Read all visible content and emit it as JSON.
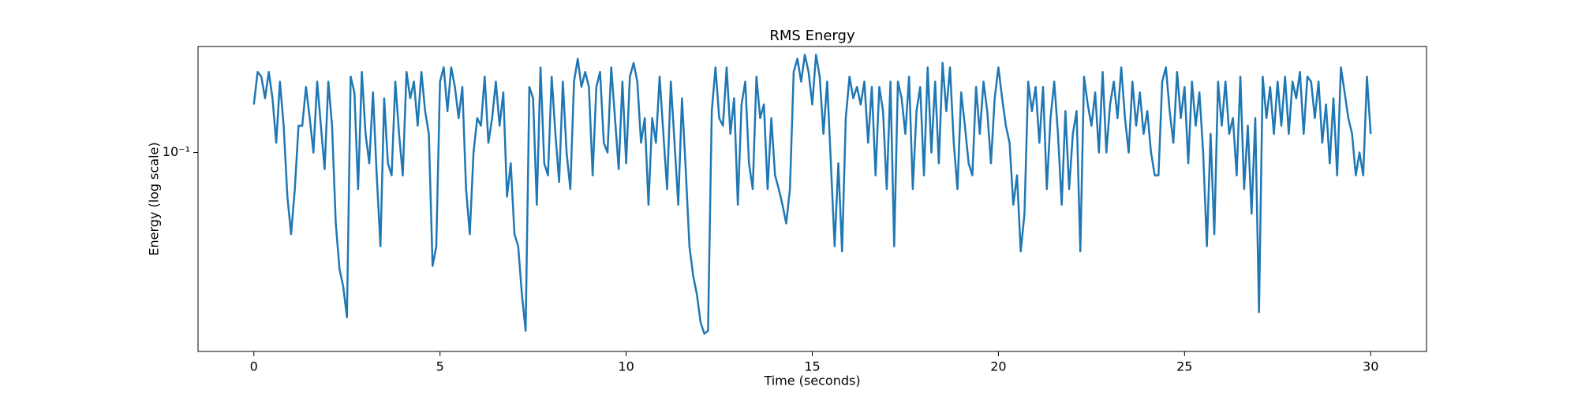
{
  "chart_data": {
    "type": "line",
    "title": "RMS Energy",
    "x_label": "Time (seconds)",
    "y_label": "Energy (log scale)",
    "log_y": true,
    "grid": false,
    "xlim": [
      -1.5,
      31.5
    ],
    "xticks": [
      0,
      5,
      10,
      15,
      20,
      25,
      30
    ],
    "ylim": [
      0.0143,
      0.282
    ],
    "yticks": [
      {
        "value": 0.1,
        "label": "10⁻¹"
      }
    ],
    "x": [
      0,
      0.1,
      0.2,
      0.3,
      0.4,
      0.5,
      0.6,
      0.7,
      0.8,
      0.9,
      1,
      1.1,
      1.2,
      1.3,
      1.4,
      1.5,
      1.6,
      1.7,
      1.8,
      1.9,
      2,
      2.1,
      2.2,
      2.3,
      2.4,
      2.5,
      2.6,
      2.7,
      2.8,
      2.9,
      3,
      3.1,
      3.2,
      3.3,
      3.4,
      3.5,
      3.6,
      3.7,
      3.8,
      3.9,
      4,
      4.1,
      4.2,
      4.3,
      4.4,
      4.5,
      4.6,
      4.7,
      4.8,
      4.9,
      5,
      5.1,
      5.2,
      5.3,
      5.4,
      5.5,
      5.6,
      5.7,
      5.8,
      5.9,
      6,
      6.1,
      6.2,
      6.3,
      6.4,
      6.5,
      6.6,
      6.7,
      6.8,
      6.9,
      7,
      7.1,
      7.2,
      7.3,
      7.4,
      7.5,
      7.6,
      7.7,
      7.8,
      7.9,
      8,
      8.1,
      8.2,
      8.3,
      8.4,
      8.5,
      8.6,
      8.7,
      8.8,
      8.9,
      9,
      9.1,
      9.2,
      9.3,
      9.4,
      9.5,
      9.6,
      9.7,
      9.8,
      9.9,
      10,
      10.1,
      10.2,
      10.3,
      10.4,
      10.5,
      10.6,
      10.7,
      10.8,
      10.9,
      11,
      11.1,
      11.2,
      11.3,
      11.4,
      11.5,
      11.6,
      11.7,
      11.8,
      11.9,
      12,
      12.1,
      12.2,
      12.3,
      12.4,
      12.5,
      12.6,
      12.7,
      12.8,
      12.9,
      13,
      13.1,
      13.2,
      13.3,
      13.4,
      13.5,
      13.6,
      13.7,
      13.8,
      13.9,
      14,
      14.1,
      14.2,
      14.3,
      14.4,
      14.5,
      14.6,
      14.7,
      14.8,
      14.9,
      15,
      15.1,
      15.2,
      15.3,
      15.4,
      15.5,
      15.6,
      15.7,
      15.8,
      15.9,
      16,
      16.1,
      16.2,
      16.3,
      16.4,
      16.5,
      16.6,
      16.7,
      16.8,
      16.9,
      17,
      17.1,
      17.2,
      17.3,
      17.4,
      17.5,
      17.6,
      17.7,
      17.8,
      17.9,
      18,
      18.1,
      18.2,
      18.3,
      18.4,
      18.5,
      18.6,
      18.7,
      18.8,
      18.9,
      19,
      19.1,
      19.2,
      19.3,
      19.4,
      19.5,
      19.6,
      19.7,
      19.8,
      19.9,
      20,
      20.1,
      20.2,
      20.3,
      20.4,
      20.5,
      20.6,
      20.7,
      20.8,
      20.9,
      21,
      21.1,
      21.2,
      21.3,
      21.4,
      21.5,
      21.6,
      21.7,
      21.8,
      21.9,
      22,
      22.1,
      22.2,
      22.3,
      22.4,
      22.5,
      22.6,
      22.7,
      22.8,
      22.9,
      23,
      23.1,
      23.2,
      23.3,
      23.4,
      23.5,
      23.6,
      23.7,
      23.8,
      23.9,
      24,
      24.1,
      24.2,
      24.3,
      24.4,
      24.5,
      24.6,
      24.7,
      24.8,
      24.9,
      25,
      25.1,
      25.2,
      25.3,
      25.4,
      25.5,
      25.6,
      25.7,
      25.8,
      25.9,
      26,
      26.1,
      26.2,
      26.3,
      26.4,
      26.5,
      26.6,
      26.7,
      26.8,
      26.9,
      27,
      27.1,
      27.2,
      27.3,
      27.4,
      27.5,
      27.6,
      27.7,
      27.8,
      27.9,
      28,
      28.1,
      28.2,
      28.3,
      28.4,
      28.5,
      28.6,
      28.7,
      28.8,
      28.9,
      29,
      29.1,
      29.2,
      29.3,
      29.4,
      29.5,
      29.6,
      29.7,
      29.8,
      29.9,
      30
    ],
    "series": [
      {
        "color": "#1f77b4",
        "values": [
          0.16,
          0.22,
          0.21,
          0.17,
          0.22,
          0.17,
          0.11,
          0.2,
          0.13,
          0.065,
          0.045,
          0.07,
          0.13,
          0.13,
          0.19,
          0.14,
          0.1,
          0.2,
          0.13,
          0.085,
          0.2,
          0.13,
          0.05,
          0.032,
          0.027,
          0.02,
          0.21,
          0.18,
          0.07,
          0.22,
          0.12,
          0.09,
          0.18,
          0.08,
          0.04,
          0.17,
          0.09,
          0.08,
          0.2,
          0.12,
          0.08,
          0.22,
          0.17,
          0.2,
          0.13,
          0.22,
          0.15,
          0.12,
          0.033,
          0.04,
          0.2,
          0.23,
          0.15,
          0.23,
          0.19,
          0.14,
          0.19,
          0.07,
          0.045,
          0.1,
          0.14,
          0.13,
          0.21,
          0.11,
          0.14,
          0.2,
          0.13,
          0.18,
          0.065,
          0.09,
          0.045,
          0.04,
          0.025,
          0.0175,
          0.19,
          0.17,
          0.06,
          0.23,
          0.09,
          0.08,
          0.21,
          0.12,
          0.075,
          0.2,
          0.1,
          0.07,
          0.2,
          0.25,
          0.19,
          0.22,
          0.19,
          0.08,
          0.19,
          0.22,
          0.11,
          0.1,
          0.23,
          0.14,
          0.085,
          0.2,
          0.09,
          0.21,
          0.24,
          0.2,
          0.11,
          0.14,
          0.06,
          0.14,
          0.11,
          0.21,
          0.12,
          0.07,
          0.2,
          0.11,
          0.06,
          0.17,
          0.085,
          0.04,
          0.03,
          0.025,
          0.019,
          0.017,
          0.0175,
          0.15,
          0.23,
          0.14,
          0.13,
          0.23,
          0.12,
          0.17,
          0.06,
          0.16,
          0.2,
          0.09,
          0.07,
          0.21,
          0.14,
          0.16,
          0.07,
          0.14,
          0.08,
          0.07,
          0.06,
          0.05,
          0.07,
          0.22,
          0.25,
          0.2,
          0.26,
          0.22,
          0.16,
          0.26,
          0.21,
          0.12,
          0.2,
          0.09,
          0.04,
          0.09,
          0.038,
          0.14,
          0.21,
          0.17,
          0.19,
          0.16,
          0.2,
          0.11,
          0.19,
          0.08,
          0.19,
          0.15,
          0.07,
          0.2,
          0.04,
          0.2,
          0.17,
          0.12,
          0.21,
          0.07,
          0.15,
          0.19,
          0.08,
          0.23,
          0.1,
          0.2,
          0.09,
          0.24,
          0.15,
          0.23,
          0.11,
          0.07,
          0.18,
          0.13,
          0.09,
          0.08,
          0.19,
          0.12,
          0.2,
          0.15,
          0.09,
          0.17,
          0.23,
          0.17,
          0.13,
          0.11,
          0.06,
          0.08,
          0.038,
          0.055,
          0.2,
          0.15,
          0.19,
          0.11,
          0.19,
          0.07,
          0.14,
          0.2,
          0.12,
          0.06,
          0.15,
          0.07,
          0.12,
          0.15,
          0.038,
          0.21,
          0.16,
          0.13,
          0.18,
          0.1,
          0.22,
          0.1,
          0.16,
          0.2,
          0.14,
          0.23,
          0.14,
          0.1,
          0.2,
          0.13,
          0.18,
          0.12,
          0.15,
          0.1,
          0.08,
          0.08,
          0.2,
          0.23,
          0.15,
          0.11,
          0.22,
          0.14,
          0.19,
          0.09,
          0.2,
          0.13,
          0.18,
          0.1,
          0.04,
          0.12,
          0.045,
          0.2,
          0.13,
          0.2,
          0.12,
          0.14,
          0.08,
          0.21,
          0.07,
          0.13,
          0.055,
          0.14,
          0.021,
          0.21,
          0.14,
          0.19,
          0.12,
          0.2,
          0.13,
          0.21,
          0.12,
          0.2,
          0.17,
          0.22,
          0.12,
          0.21,
          0.2,
          0.14,
          0.2,
          0.11,
          0.16,
          0.09,
          0.17,
          0.08,
          0.23,
          0.18,
          0.14,
          0.12,
          0.08,
          0.1,
          0.08,
          0.21,
          0.12
        ]
      }
    ]
  }
}
